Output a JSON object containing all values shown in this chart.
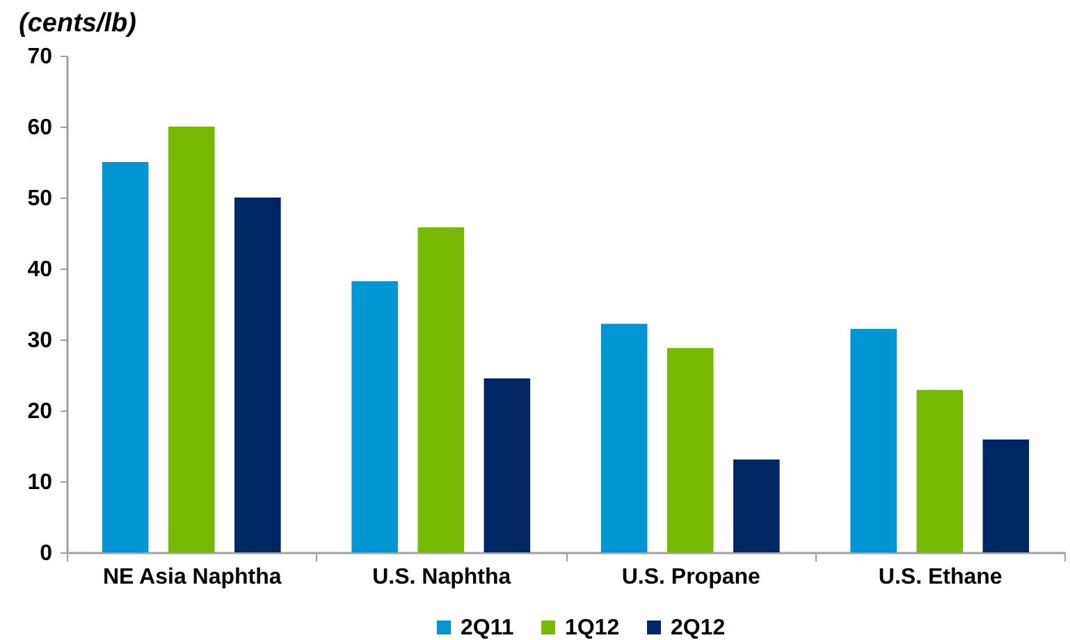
{
  "chart_data": {
    "type": "bar",
    "ylabel": "(cents/lb)",
    "categories": [
      "NE Asia Naphtha",
      "U.S. Naphtha",
      "U.S. Propane",
      "U.S. Ethane"
    ],
    "series": [
      {
        "name": "2Q11",
        "color": "#0096d6",
        "values": [
          55,
          38.2,
          32.2,
          31.5
        ]
      },
      {
        "name": "1Q12",
        "color": "#77b800",
        "values": [
          60,
          45.8,
          28.8,
          22.9
        ]
      },
      {
        "name": "2Q12",
        "color": "#002663",
        "values": [
          50,
          24.5,
          13.1,
          15.9
        ]
      }
    ],
    "ylim": [
      0,
      70
    ],
    "yticks": [
      0,
      10,
      20,
      30,
      40,
      50,
      60,
      70
    ],
    "legend": "bottom"
  }
}
